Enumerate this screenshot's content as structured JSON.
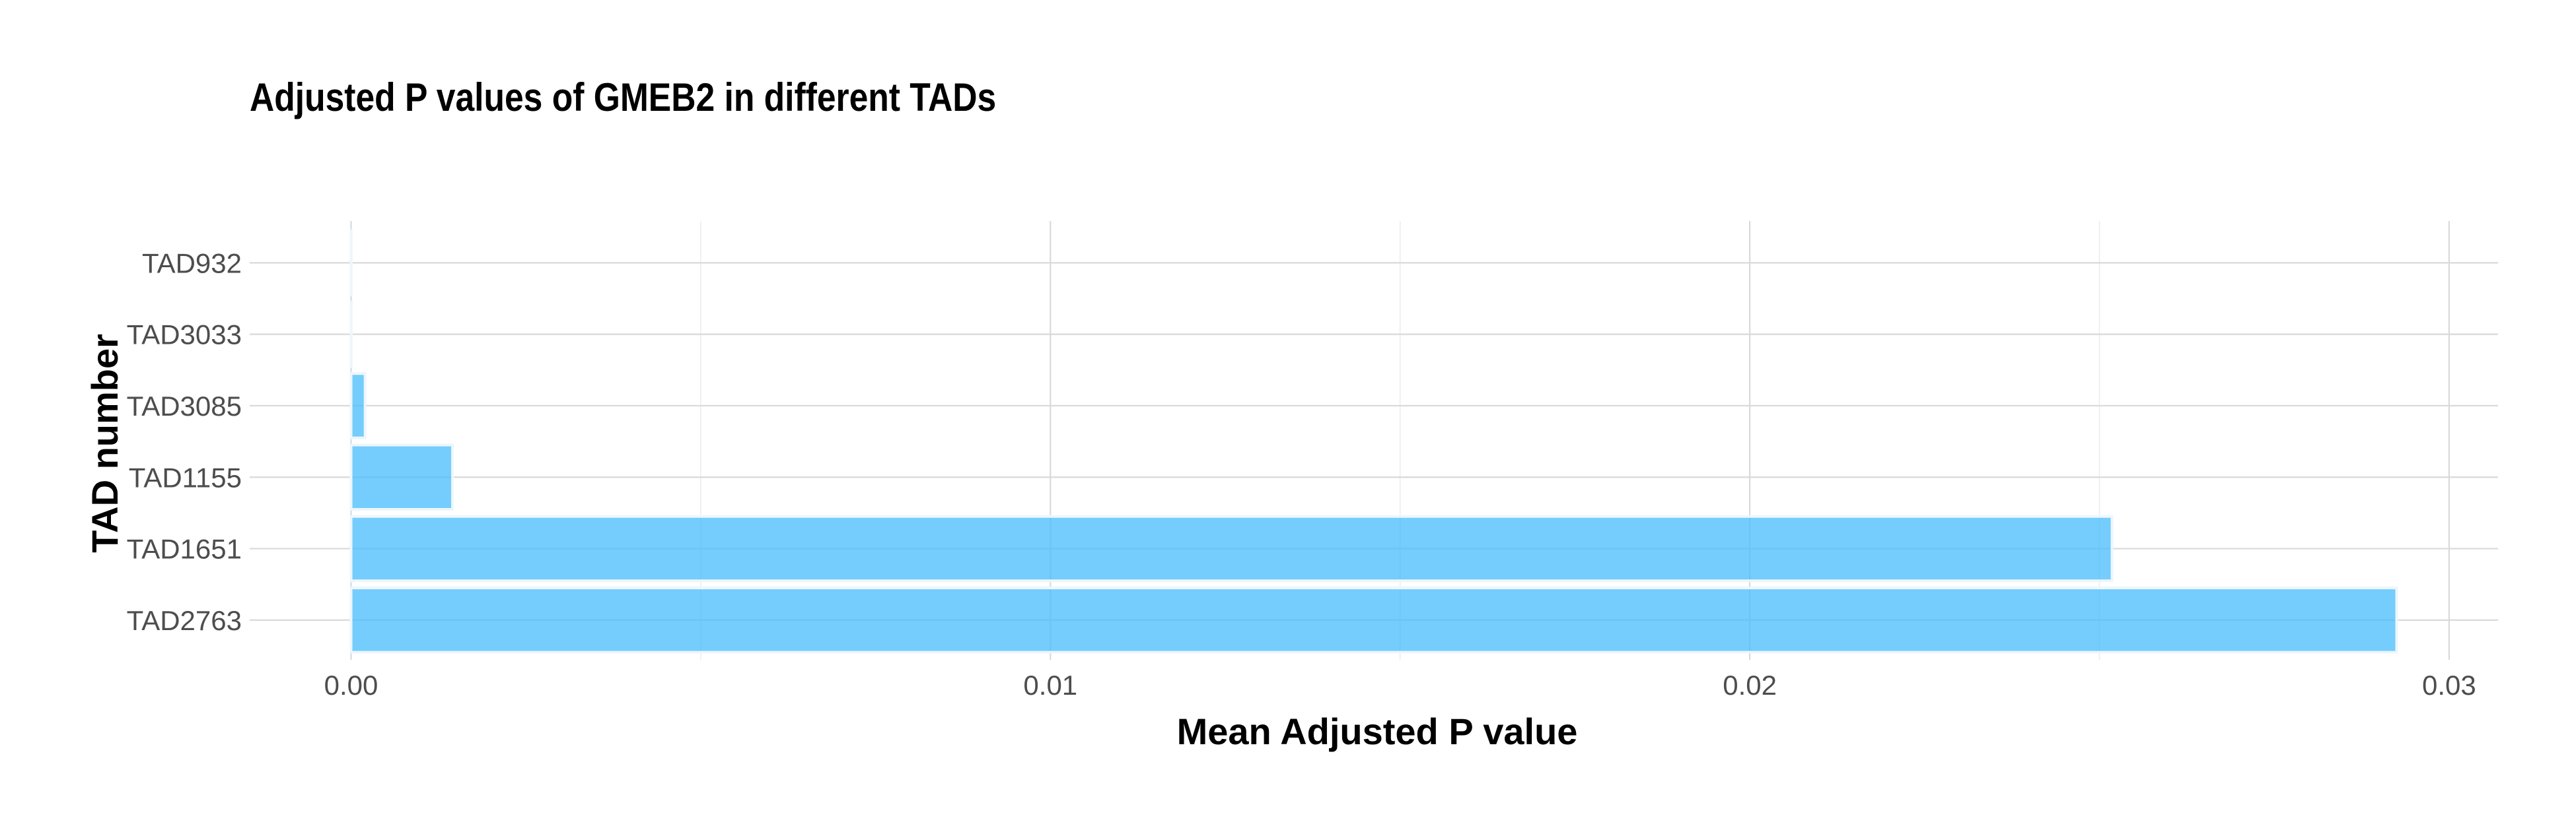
{
  "chart_data": {
    "type": "bar",
    "orientation": "horizontal",
    "title": "Adjusted P values of GMEB2 in different TADs",
    "xlabel": "Mean Adjusted P value",
    "ylabel": "TAD number",
    "categories": [
      "TAD2763",
      "TAD1651",
      "TAD1155",
      "TAD3085",
      "TAD3033",
      "TAD932"
    ],
    "values": [
      0.02925,
      0.02518,
      0.00145,
      0.0002,
      0.0,
      0.0
    ],
    "xlim": [
      -0.00145,
      0.0307
    ],
    "xticks": [
      0.0,
      0.01,
      0.02,
      0.03
    ],
    "xtick_labels": [
      "0.00",
      "0.01",
      "0.02",
      "0.03"
    ],
    "bar_color": "#45BCFB",
    "grid": true,
    "legend": "none"
  }
}
